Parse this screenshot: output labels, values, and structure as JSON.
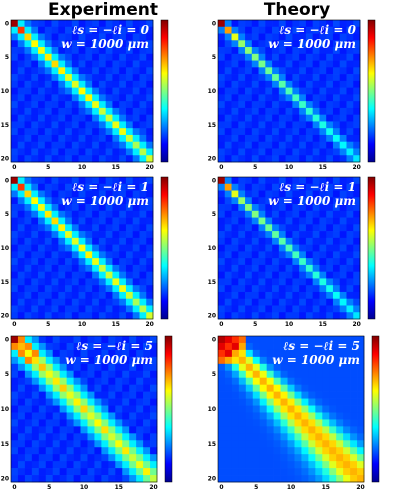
{
  "column_titles": [
    "Experiment",
    "Theory"
  ],
  "chart_data": [
    {
      "type": "heatmap",
      "column": "Experiment",
      "row": 1,
      "annotation_l": "ℓs = −ℓi = 0",
      "annotation_w": "w = 1000 μm",
      "x_ticks": [
        "0",
        "5",
        "10",
        "15",
        "20"
      ],
      "y_ticks": [
        "0",
        "5",
        "10",
        "15",
        "20"
      ],
      "xlim": [
        0,
        20
      ],
      "ylim": [
        0,
        20
      ],
      "colormap": "jet",
      "model": {
        "type": "exp",
        "ell": 0
      }
    },
    {
      "type": "heatmap",
      "column": "Theory",
      "row": 1,
      "annotation_l": "ℓs = −ℓi = 0",
      "annotation_w": "w = 1000 μm",
      "x_ticks": [
        "0",
        "5",
        "10",
        "15",
        "20"
      ],
      "y_ticks": [
        "0",
        "5",
        "10",
        "15",
        "20"
      ],
      "xlim": [
        0,
        20
      ],
      "ylim": [
        0,
        20
      ],
      "colormap": "jet",
      "model": {
        "type": "theory",
        "ell": 0
      }
    },
    {
      "type": "heatmap",
      "column": "Experiment",
      "row": 2,
      "annotation_l": "ℓs = −ℓi = 1",
      "annotation_w": "w = 1000 μm",
      "x_ticks": [
        "0",
        "5",
        "10",
        "15",
        "20"
      ],
      "y_ticks": [
        "0",
        "5",
        "10",
        "15",
        "20"
      ],
      "xlim": [
        0,
        20
      ],
      "ylim": [
        0,
        20
      ],
      "colormap": "jet",
      "model": {
        "type": "exp",
        "ell": 1
      }
    },
    {
      "type": "heatmap",
      "column": "Theory",
      "row": 2,
      "annotation_l": "ℓs = −ℓi = 1",
      "annotation_w": "w = 1000 μm",
      "x_ticks": [
        "0",
        "5",
        "10",
        "15",
        "20"
      ],
      "y_ticks": [
        "0",
        "5",
        "10",
        "15",
        "20"
      ],
      "xlim": [
        0,
        20
      ],
      "ylim": [
        0,
        20
      ],
      "colormap": "jet",
      "model": {
        "type": "theory",
        "ell": 1
      }
    },
    {
      "type": "heatmap",
      "column": "Experiment",
      "row": 3,
      "annotation_l": "ℓs = −ℓi = 5",
      "annotation_w": "w = 1000 μm",
      "x_ticks": [
        "0",
        "5",
        "10",
        "15",
        "20"
      ],
      "y_ticks": [
        "0",
        "5",
        "10",
        "15",
        "20"
      ],
      "xlim": [
        0,
        20
      ],
      "ylim": [
        0,
        20
      ],
      "colormap": "jet",
      "model": {
        "type": "exp",
        "ell": 5
      }
    },
    {
      "type": "heatmap",
      "column": "Theory",
      "row": 3,
      "annotation_l": "ℓs = −ℓi = 5",
      "annotation_w": "w = 1000 μm",
      "x_ticks": [
        "0",
        "5",
        "10",
        "15",
        "20"
      ],
      "y_ticks": [
        "0",
        "5",
        "10",
        "15",
        "20"
      ],
      "xlim": [
        0,
        20
      ],
      "ylim": [
        0,
        20
      ],
      "colormap": "jet",
      "model": {
        "type": "theory",
        "ell": 5
      }
    }
  ]
}
